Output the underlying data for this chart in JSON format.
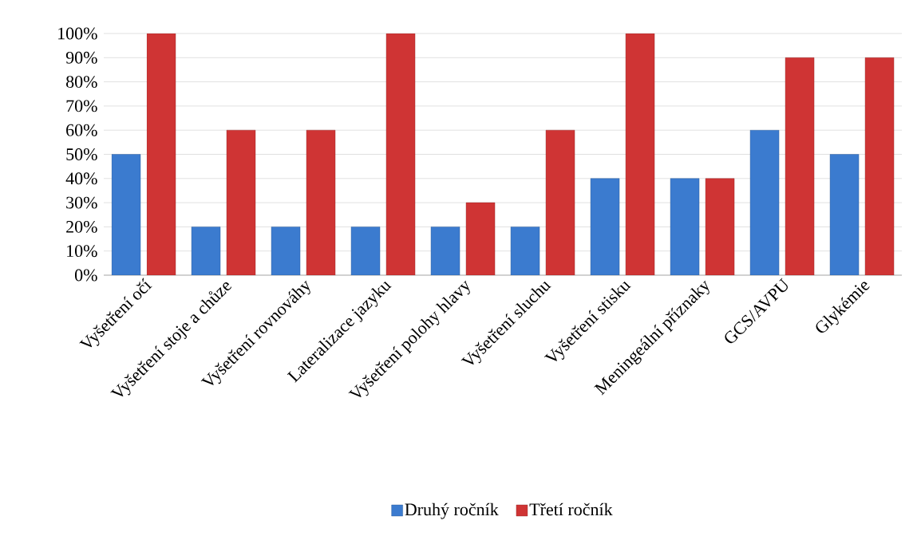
{
  "chart_data": {
    "type": "bar",
    "categories": [
      "Vyšetření očí",
      "Vyšetření stoje a chůze",
      "Vyšetření rovnováhy",
      "Lateralizace jazyku",
      "Vyšetření polohy hlavy",
      "Vyšetření sluchu",
      "Vyšetření stisku",
      "Meningeální příznaky",
      "GCS/AVPU",
      "Glykémie"
    ],
    "series": [
      {
        "name": "Druhý ročník",
        "color": "#3b7bcf",
        "values": [
          50,
          20,
          20,
          20,
          20,
          20,
          40,
          40,
          60,
          50
        ]
      },
      {
        "name": "Třetí ročník",
        "color": "#cf3434",
        "values": [
          100,
          60,
          60,
          100,
          30,
          60,
          100,
          40,
          90,
          90
        ]
      }
    ],
    "ylim": [
      0,
      100
    ],
    "yticks": [
      {
        "value": 0,
        "label": "0%"
      },
      {
        "value": 10,
        "label": "10%"
      },
      {
        "value": 20,
        "label": "20%"
      },
      {
        "value": 30,
        "label": "30%"
      },
      {
        "value": 40,
        "label": "40%"
      },
      {
        "value": 50,
        "label": "50%"
      },
      {
        "value": 60,
        "label": "60%"
      },
      {
        "value": 70,
        "label": "70%"
      },
      {
        "value": 80,
        "label": "80%"
      },
      {
        "value": 90,
        "label": "90%"
      },
      {
        "value": 100,
        "label": "100%"
      }
    ],
    "grid": "y",
    "legend": "bottom"
  }
}
